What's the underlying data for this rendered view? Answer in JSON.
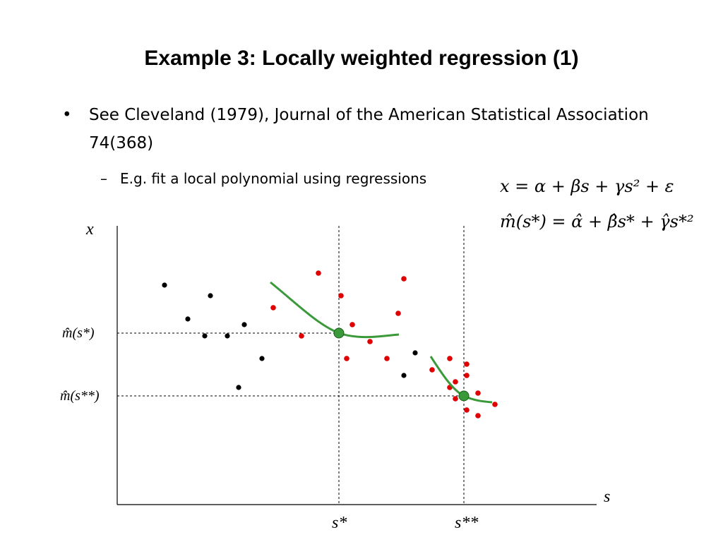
{
  "slide": {
    "title": "Example 3: Locally weighted regression (1)",
    "bullet_symbol": "•",
    "bullet_text": "See Cleveland (1979), Journal of the American Statistical Association 74(368)",
    "sub_dash": "–",
    "sub_text": "E.g. fit a local polynomial using regressions",
    "equation_1": "x = α + βs + γs² + ε",
    "equation_2": "m̂(s*) = α̂ + β̂s* + γ̂s*²"
  },
  "axes": {
    "y_label": "x",
    "x_label": "s",
    "s_star": "s*",
    "s_star_star": "s**",
    "m_s_star": "m̂(s*)",
    "m_s_star_star": "m̂(s**)"
  },
  "colors": {
    "black_points": "#000000",
    "red_points": "#e00000",
    "fit_curve": "#3a9a3a",
    "fit_point": "#3a9a3a"
  }
}
